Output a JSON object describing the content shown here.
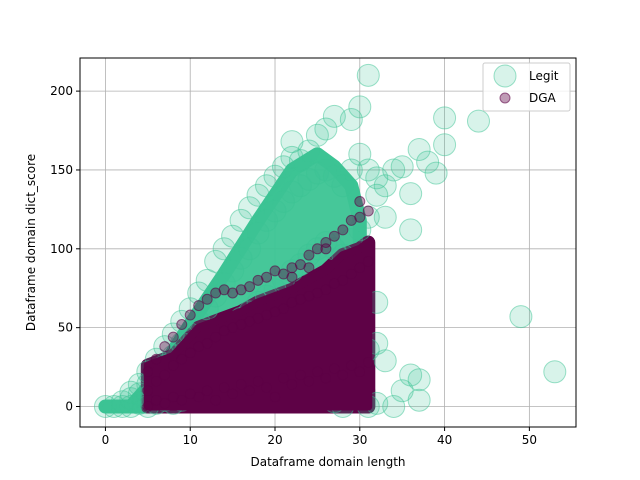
{
  "chart_data": {
    "type": "scatter",
    "title": "",
    "xlabel": "Dataframe domain length",
    "ylabel": "Dataframe domain dict_score",
    "xlim": [
      -3,
      55.5
    ],
    "ylim": [
      -13,
      221
    ],
    "x_ticks": [
      0,
      10,
      20,
      30,
      40,
      50
    ],
    "y_ticks": [
      0,
      50,
      100,
      150,
      200
    ],
    "grid": true,
    "legend_position": "top-right",
    "series": [
      {
        "name": "Legit",
        "color": "#3cc494",
        "alpha": 0.2,
        "marker": "large-circle",
        "points": [
          [
            0,
            0
          ],
          [
            1,
            0
          ],
          [
            2,
            0
          ],
          [
            2,
            3
          ],
          [
            3,
            0
          ],
          [
            3,
            5
          ],
          [
            3,
            9
          ],
          [
            4,
            2
          ],
          [
            4,
            8
          ],
          [
            4,
            14
          ],
          [
            5,
            0
          ],
          [
            5,
            6
          ],
          [
            5,
            14
          ],
          [
            5,
            22
          ],
          [
            6,
            2
          ],
          [
            6,
            10
          ],
          [
            6,
            20
          ],
          [
            6,
            30
          ],
          [
            7,
            4
          ],
          [
            7,
            14
          ],
          [
            7,
            26
          ],
          [
            7,
            38
          ],
          [
            8,
            2
          ],
          [
            8,
            16
          ],
          [
            8,
            32
          ],
          [
            8,
            46
          ],
          [
            9,
            4
          ],
          [
            9,
            20
          ],
          [
            9,
            40
          ],
          [
            9,
            54
          ],
          [
            10,
            6
          ],
          [
            10,
            24
          ],
          [
            10,
            46
          ],
          [
            10,
            62
          ],
          [
            11,
            8
          ],
          [
            11,
            30
          ],
          [
            11,
            54
          ],
          [
            11,
            72
          ],
          [
            12,
            6
          ],
          [
            12,
            34
          ],
          [
            12,
            62
          ],
          [
            12,
            80
          ],
          [
            13,
            10
          ],
          [
            13,
            40
          ],
          [
            13,
            70
          ],
          [
            13,
            92
          ],
          [
            14,
            8
          ],
          [
            14,
            44
          ],
          [
            14,
            78
          ],
          [
            14,
            100
          ],
          [
            15,
            12
          ],
          [
            15,
            50
          ],
          [
            15,
            86
          ],
          [
            15,
            108
          ],
          [
            16,
            14
          ],
          [
            16,
            56
          ],
          [
            16,
            94
          ],
          [
            16,
            118
          ],
          [
            17,
            10
          ],
          [
            17,
            60
          ],
          [
            17,
            100
          ],
          [
            17,
            126
          ],
          [
            18,
            16
          ],
          [
            18,
            66
          ],
          [
            18,
            110
          ],
          [
            18,
            134
          ],
          [
            19,
            18
          ],
          [
            19,
            70
          ],
          [
            19,
            118
          ],
          [
            19,
            140
          ],
          [
            20,
            14
          ],
          [
            20,
            74
          ],
          [
            20,
            124
          ],
          [
            20,
            146
          ],
          [
            21,
            20
          ],
          [
            21,
            80
          ],
          [
            21,
            130
          ],
          [
            21,
            152
          ],
          [
            22,
            22
          ],
          [
            22,
            86
          ],
          [
            22,
            136
          ],
          [
            22,
            158
          ],
          [
            22,
            168
          ],
          [
            23,
            16
          ],
          [
            23,
            90
          ],
          [
            23,
            140
          ],
          [
            23,
            156
          ],
          [
            24,
            24
          ],
          [
            24,
            96
          ],
          [
            24,
            144
          ],
          [
            24,
            162
          ],
          [
            25,
            20
          ],
          [
            25,
            100
          ],
          [
            25,
            148
          ],
          [
            25,
            172
          ],
          [
            26,
            26
          ],
          [
            26,
            104
          ],
          [
            26,
            150
          ],
          [
            26,
            176
          ],
          [
            27,
            30
          ],
          [
            27,
            100
          ],
          [
            27,
            146
          ],
          [
            27,
            184
          ],
          [
            27,
            3
          ],
          [
            28,
            28
          ],
          [
            28,
            96
          ],
          [
            28,
            140
          ],
          [
            28,
            0
          ],
          [
            29,
            34
          ],
          [
            29,
            106
          ],
          [
            29,
            150
          ],
          [
            29,
            182
          ],
          [
            30,
            40
          ],
          [
            30,
            112
          ],
          [
            30,
            160
          ],
          [
            30,
            190
          ],
          [
            31,
            36
          ],
          [
            31,
            120
          ],
          [
            31,
            150
          ],
          [
            31,
            210
          ],
          [
            31,
            0
          ],
          [
            32,
            40
          ],
          [
            32,
            134
          ],
          [
            32,
            145
          ],
          [
            32,
            2
          ],
          [
            32,
            66
          ],
          [
            33,
            29
          ],
          [
            33,
            140
          ],
          [
            33,
            120
          ],
          [
            34,
            150
          ],
          [
            34,
            0
          ],
          [
            35,
            10
          ],
          [
            35,
            152
          ],
          [
            36,
            112
          ],
          [
            36,
            135
          ],
          [
            36,
            20
          ],
          [
            37,
            4
          ],
          [
            37,
            17
          ],
          [
            37,
            163
          ],
          [
            38,
            155
          ],
          [
            39,
            148
          ],
          [
            40,
            183
          ],
          [
            40,
            166
          ],
          [
            44,
            181
          ],
          [
            49,
            57
          ],
          [
            53,
            22
          ]
        ]
      },
      {
        "name": "DGA",
        "color": "#5e0246",
        "alpha": 0.4,
        "marker": "small-circle",
        "points": [
          [
            5,
            0
          ],
          [
            5,
            10
          ],
          [
            5,
            22
          ],
          [
            6,
            4
          ],
          [
            6,
            16
          ],
          [
            6,
            30
          ],
          [
            7,
            2
          ],
          [
            7,
            20
          ],
          [
            7,
            38
          ],
          [
            8,
            6
          ],
          [
            8,
            26
          ],
          [
            8,
            44
          ],
          [
            9,
            4
          ],
          [
            9,
            30
          ],
          [
            9,
            52
          ],
          [
            10,
            8
          ],
          [
            10,
            34
          ],
          [
            10,
            58
          ],
          [
            11,
            6
          ],
          [
            11,
            38
          ],
          [
            11,
            64
          ],
          [
            12,
            10
          ],
          [
            12,
            40
          ],
          [
            12,
            68
          ],
          [
            13,
            4
          ],
          [
            13,
            44
          ],
          [
            13,
            72
          ],
          [
            14,
            12
          ],
          [
            14,
            48
          ],
          [
            14,
            74
          ],
          [
            15,
            8
          ],
          [
            15,
            50
          ],
          [
            15,
            72
          ],
          [
            16,
            14
          ],
          [
            16,
            52
          ],
          [
            16,
            74
          ],
          [
            17,
            10
          ],
          [
            17,
            54
          ],
          [
            17,
            76
          ],
          [
            18,
            16
          ],
          [
            18,
            56
          ],
          [
            18,
            80
          ],
          [
            19,
            12
          ],
          [
            19,
            58
          ],
          [
            19,
            82
          ],
          [
            20,
            6
          ],
          [
            20,
            60
          ],
          [
            20,
            86
          ],
          [
            21,
            18
          ],
          [
            21,
            62
          ],
          [
            21,
            84
          ],
          [
            22,
            14
          ],
          [
            22,
            66
          ],
          [
            22,
            88
          ],
          [
            23,
            20
          ],
          [
            23,
            68
          ],
          [
            23,
            90
          ],
          [
            24,
            16
          ],
          [
            24,
            70
          ],
          [
            24,
            96
          ],
          [
            25,
            22
          ],
          [
            25,
            72
          ],
          [
            25,
            100
          ],
          [
            26,
            18
          ],
          [
            26,
            74
          ],
          [
            26,
            104
          ],
          [
            27,
            24
          ],
          [
            27,
            78
          ],
          [
            27,
            108
          ],
          [
            28,
            20
          ],
          [
            28,
            80
          ],
          [
            28,
            112
          ],
          [
            29,
            26
          ],
          [
            29,
            84
          ],
          [
            29,
            118
          ],
          [
            30,
            22
          ],
          [
            30,
            88
          ],
          [
            30,
            120
          ],
          [
            30,
            130
          ],
          [
            31,
            28
          ],
          [
            31,
            92
          ],
          [
            31,
            124
          ],
          [
            22,
            82
          ],
          [
            24,
            88
          ],
          [
            26,
            100
          ]
        ]
      }
    ],
    "bands": [
      {
        "series": "Legit",
        "polygon": [
          [
            0,
            0
          ],
          [
            3,
            0
          ],
          [
            6,
            18
          ],
          [
            10,
            52
          ],
          [
            14,
            84
          ],
          [
            18,
            118
          ],
          [
            22,
            150
          ],
          [
            25,
            160
          ],
          [
            27,
            152
          ],
          [
            29,
            140
          ],
          [
            30,
            118
          ],
          [
            30,
            40
          ],
          [
            31,
            10
          ],
          [
            31,
            0
          ],
          [
            28,
            0
          ],
          [
            4,
            0
          ],
          [
            1,
            0
          ]
        ]
      },
      {
        "series": "DGA",
        "polygon": [
          [
            5,
            0
          ],
          [
            5,
            26
          ],
          [
            8,
            32
          ],
          [
            11,
            50
          ],
          [
            14,
            56
          ],
          [
            16,
            60
          ],
          [
            18,
            66
          ],
          [
            20,
            70
          ],
          [
            22,
            74
          ],
          [
            24,
            80
          ],
          [
            26,
            86
          ],
          [
            28,
            96
          ],
          [
            30,
            100
          ],
          [
            31,
            104
          ],
          [
            31,
            0
          ],
          [
            28,
            0
          ],
          [
            5,
            0
          ]
        ]
      }
    ]
  }
}
